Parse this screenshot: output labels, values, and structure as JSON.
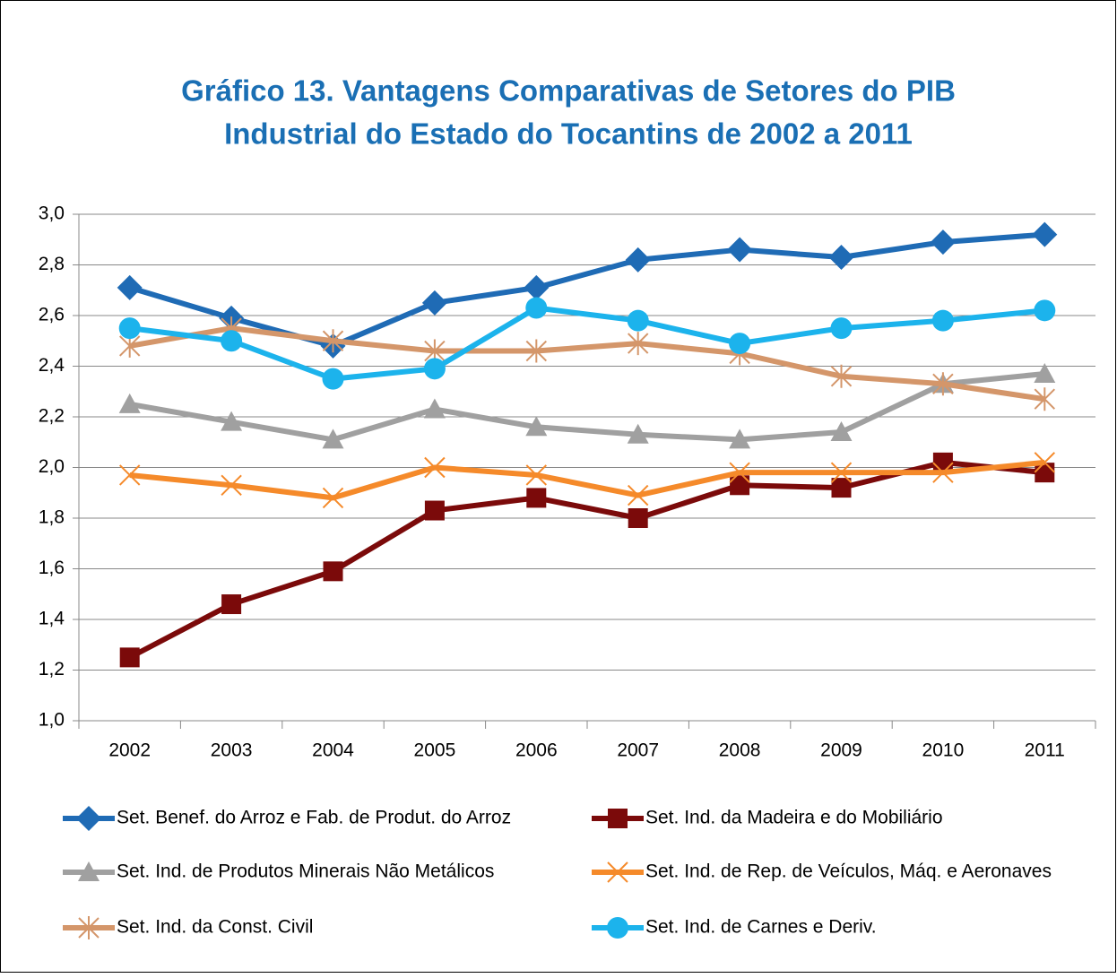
{
  "chart_data": {
    "type": "line",
    "title": [
      "Gráfico 13. Vantagens Comparativas de Setores do PIB",
      "Industrial do Estado do Tocantins de 2002 a 2011"
    ],
    "categories": [
      "2002",
      "2003",
      "2004",
      "2005",
      "2006",
      "2007",
      "2008",
      "2009",
      "2010",
      "2011"
    ],
    "ylim": [
      1.0,
      3.0
    ],
    "yticks": [
      {
        "value": 1.0,
        "label": "1,0"
      },
      {
        "value": 1.2,
        "label": "1,2"
      },
      {
        "value": 1.4,
        "label": "1,4"
      },
      {
        "value": 1.6,
        "label": "1,6"
      },
      {
        "value": 1.8,
        "label": "1,8"
      },
      {
        "value": 2.0,
        "label": "2,0"
      },
      {
        "value": 2.2,
        "label": "2,2"
      },
      {
        "value": 2.4,
        "label": "2,4"
      },
      {
        "value": 2.6,
        "label": "2,6"
      },
      {
        "value": 2.8,
        "label": "2,8"
      },
      {
        "value": 3.0,
        "label": "3,0"
      }
    ],
    "grid": true,
    "legend": "bottom",
    "series": [
      {
        "name": "Set. Benef. do Arroz e Fab. de Produt. do Arroz",
        "color": "#1f6bb5",
        "marker": "diamond",
        "values": [
          2.71,
          2.59,
          2.48,
          2.65,
          2.71,
          2.82,
          2.86,
          2.83,
          2.89,
          2.92
        ]
      },
      {
        "name": "Set. Ind. da Madeira e do Mobiliário",
        "color": "#7b0a0a",
        "marker": "square",
        "values": [
          1.25,
          1.46,
          1.59,
          1.83,
          1.88,
          1.8,
          1.93,
          1.92,
          2.02,
          1.98
        ]
      },
      {
        "name": "Set. Ind. de Produtos Minerais Não Metálicos",
        "color": "#a0a0a0",
        "marker": "triangle",
        "values": [
          2.25,
          2.18,
          2.11,
          2.23,
          2.16,
          2.13,
          2.11,
          2.14,
          2.33,
          2.37
        ]
      },
      {
        "name": "Set. Ind. de Rep. de Veículos, Máq. e Aeronaves",
        "color": "#f58a2a",
        "marker": "x",
        "values": [
          1.97,
          1.93,
          1.88,
          2.0,
          1.97,
          1.89,
          1.98,
          1.98,
          1.98,
          2.02
        ]
      },
      {
        "name": "Set. Ind. da Const. Civil",
        "color": "#d4966a",
        "marker": "star",
        "values": [
          2.48,
          2.55,
          2.5,
          2.46,
          2.46,
          2.49,
          2.45,
          2.36,
          2.33,
          2.27
        ]
      },
      {
        "name": "Set. Ind. de Carnes e Deriv.",
        "color": "#1cb3ec",
        "marker": "circle",
        "values": [
          2.55,
          2.5,
          2.35,
          2.39,
          2.63,
          2.58,
          2.49,
          2.55,
          2.58,
          2.62
        ]
      }
    ]
  }
}
